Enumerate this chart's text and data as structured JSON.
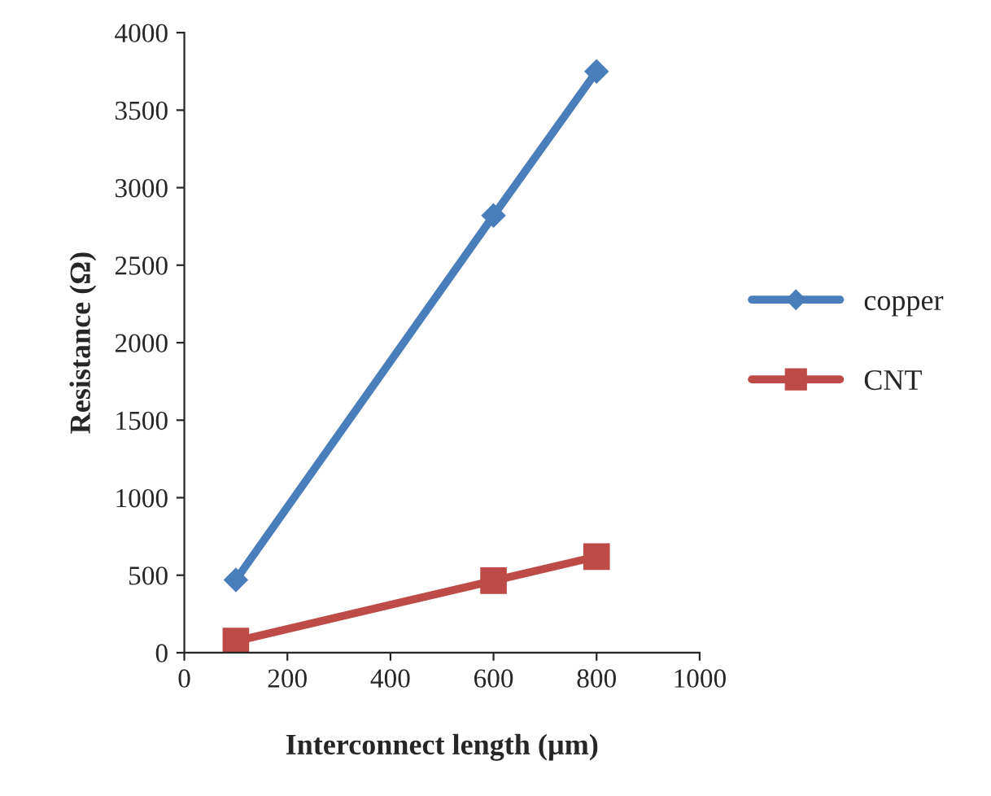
{
  "chart_data": {
    "type": "line",
    "xlabel": "Interconnect length (µm)",
    "ylabel": "Resistance (Ω)",
    "x": [
      100,
      600,
      800
    ],
    "series": [
      {
        "name": "copper",
        "color": "#4a7ebb",
        "values": [
          470,
          2820,
          3750
        ],
        "marker": "diamond"
      },
      {
        "name": "CNT",
        "color": "#be4b48",
        "values": [
          75,
          465,
          620
        ],
        "marker": "square"
      }
    ],
    "xlim": [
      0,
      1000
    ],
    "xticks": [
      0,
      200,
      400,
      600,
      800,
      1000
    ],
    "ylim": [
      0,
      4000
    ],
    "yticks": [
      0,
      500,
      1000,
      1500,
      2000,
      2500,
      3000,
      3500,
      4000
    ],
    "grid": false,
    "legend": "right",
    "line_style": "solid"
  }
}
